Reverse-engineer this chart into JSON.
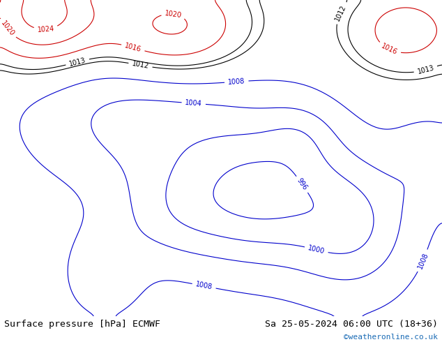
{
  "title_left": "Surface pressure [hPa] ECMWF",
  "title_right": "Sa 25-05-2024 06:00 UTC (18+36)",
  "credit": "©weatheronline.co.uk",
  "bg_land": "#b5d9a0",
  "bg_sea": "#d8e8f0",
  "bg_highland": "#c8c8c8",
  "border_color": "#888888",
  "bottom_bar_color": "#ffffff",
  "bottom_text_color": "#000000",
  "credit_color": "#1a6bb5",
  "title_fontsize": 9.5,
  "credit_fontsize": 8,
  "figsize": [
    6.34,
    4.9
  ],
  "dpi": 100,
  "isobar_low_color": "#0000cc",
  "isobar_high_color": "#cc0000",
  "isobar_normal_color": "#000000",
  "isobar_fontsize": 7,
  "contour_linewidth": 0.8,
  "lon_min": 22,
  "lon_max": 107,
  "lat_min": 5,
  "lat_max": 57
}
